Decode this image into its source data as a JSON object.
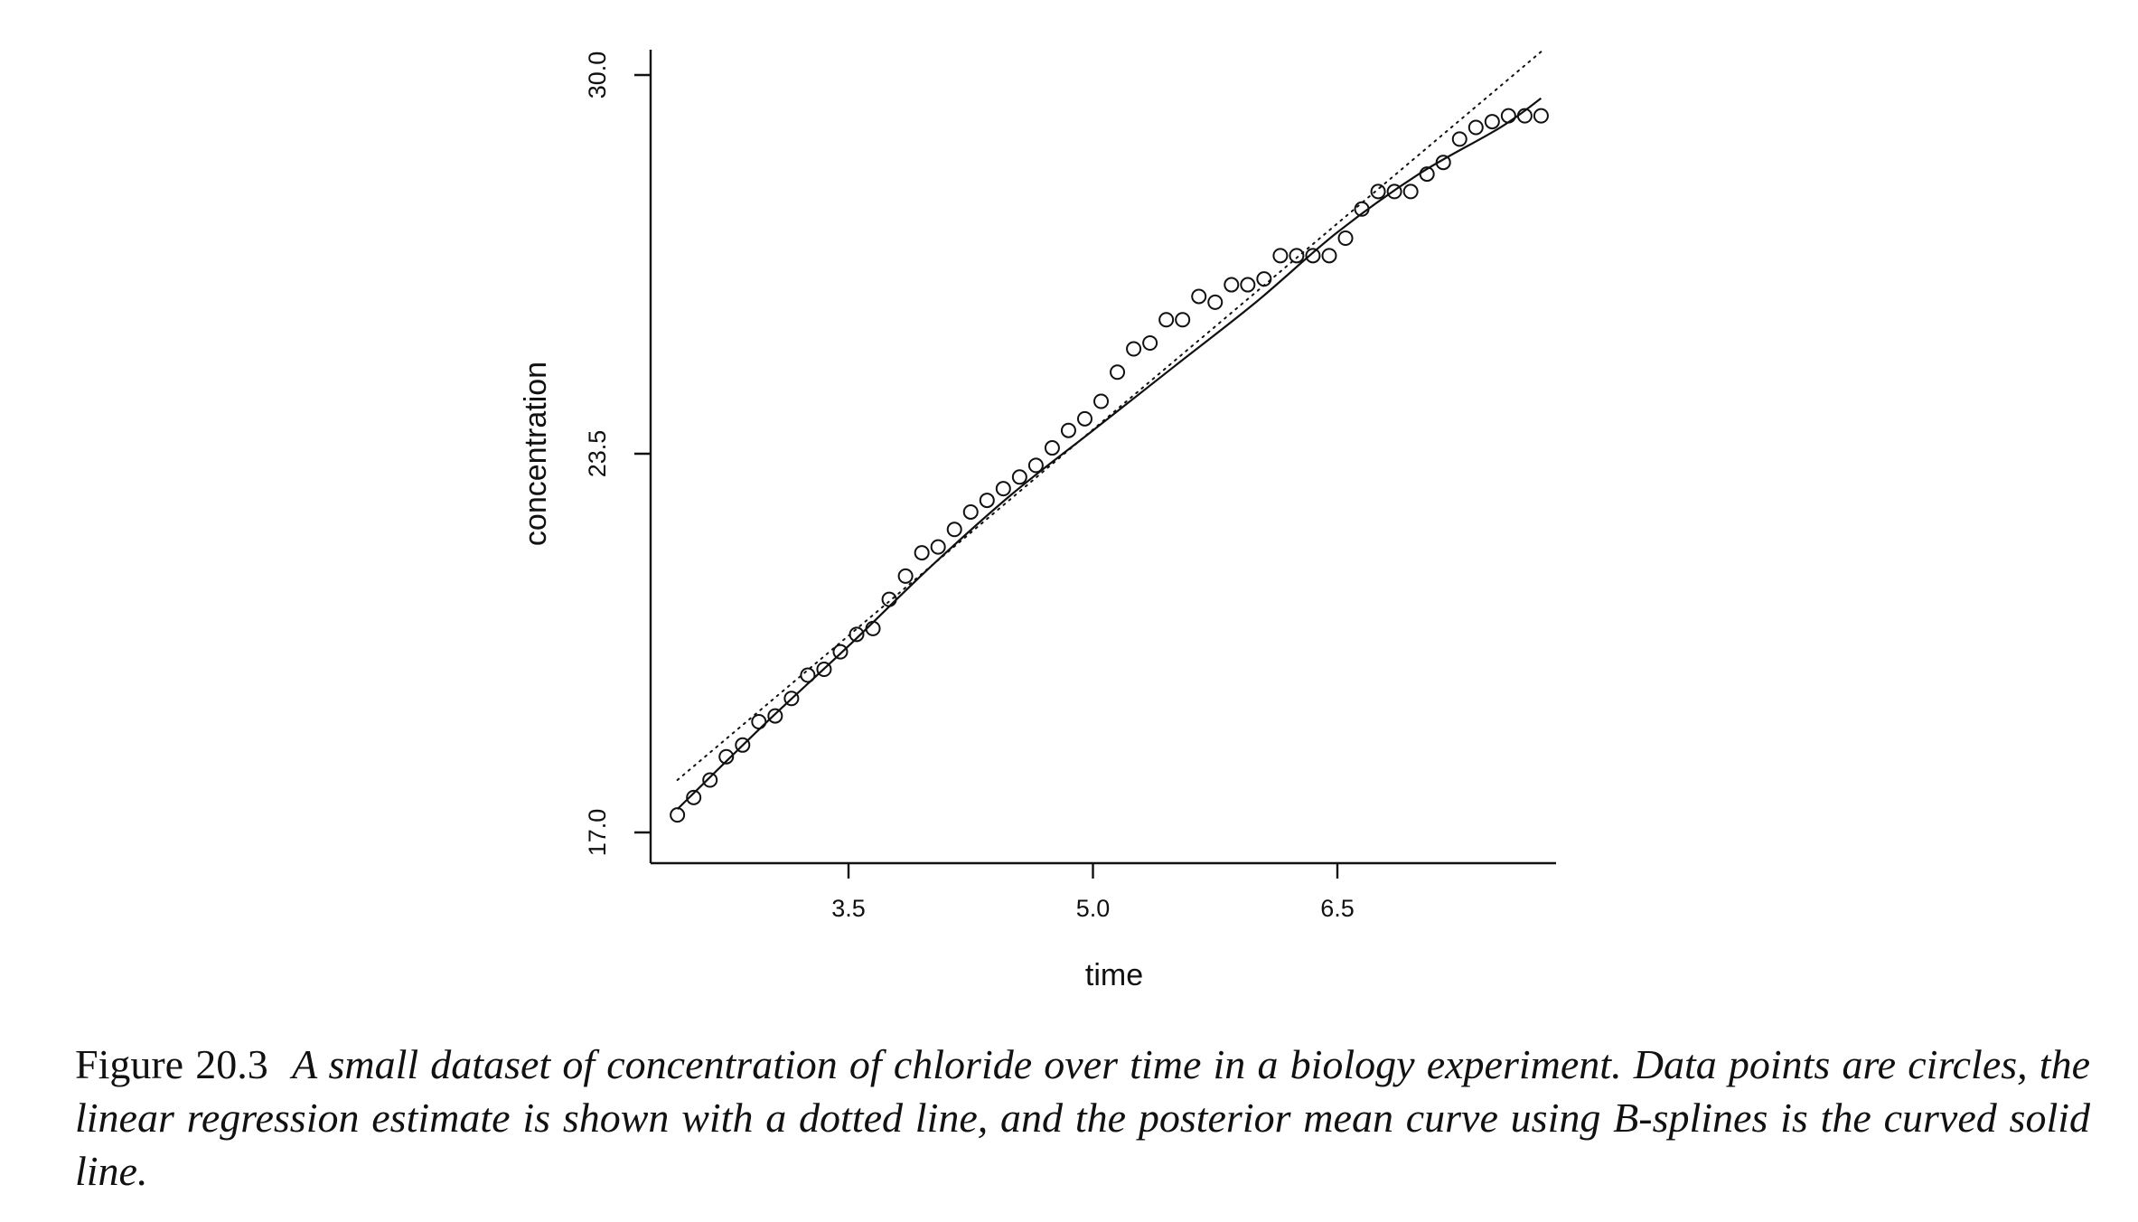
{
  "figure": {
    "label": "Figure 20.3",
    "caption": "A small dataset of concentration of chloride over time in a biology experiment. Data points are circles, the linear regression estimate is shown with a dotted line, and the posterior mean curve using B-splines is the curved solid line."
  },
  "chart_data": {
    "type": "scatter",
    "title": "",
    "xlabel": "time",
    "ylabel": "concentration",
    "xlim": [
      2.25,
      7.9
    ],
    "ylim": [
      16.5,
      30.5
    ],
    "x_ticks": [
      3.5,
      5.0,
      6.5
    ],
    "x_tick_labels": [
      "3.5",
      "5.0",
      "6.5"
    ],
    "y_ticks": [
      17.0,
      23.5,
      30.0
    ],
    "y_tick_labels": [
      "17.0",
      "23.5",
      "30.0"
    ],
    "grid": false,
    "axes_style": "left-and-bottom only",
    "series": [
      {
        "type": "scatter",
        "marker": "open-circle",
        "color": "#111111",
        "points": [
          [
            2.45,
            17.3
          ],
          [
            2.55,
            17.6
          ],
          [
            2.65,
            17.9
          ],
          [
            2.75,
            18.3
          ],
          [
            2.85,
            18.5
          ],
          [
            2.95,
            18.9
          ],
          [
            3.05,
            19.0
          ],
          [
            3.15,
            19.3
          ],
          [
            3.25,
            19.7
          ],
          [
            3.35,
            19.8
          ],
          [
            3.45,
            20.1
          ],
          [
            3.55,
            20.4
          ],
          [
            3.65,
            20.5
          ],
          [
            3.75,
            21.0
          ],
          [
            3.85,
            21.4
          ],
          [
            3.95,
            21.8
          ],
          [
            4.05,
            21.9
          ],
          [
            4.15,
            22.2
          ],
          [
            4.25,
            22.5
          ],
          [
            4.35,
            22.7
          ],
          [
            4.45,
            22.9
          ],
          [
            4.55,
            23.1
          ],
          [
            4.65,
            23.3
          ],
          [
            4.75,
            23.6
          ],
          [
            4.85,
            23.9
          ],
          [
            4.95,
            24.1
          ],
          [
            5.05,
            24.4
          ],
          [
            5.15,
            24.9
          ],
          [
            5.25,
            25.3
          ],
          [
            5.35,
            25.4
          ],
          [
            5.45,
            25.8
          ],
          [
            5.55,
            25.8
          ],
          [
            5.65,
            26.2
          ],
          [
            5.75,
            26.1
          ],
          [
            5.85,
            26.4
          ],
          [
            5.95,
            26.4
          ],
          [
            6.05,
            26.5
          ],
          [
            6.15,
            26.9
          ],
          [
            6.25,
            26.9
          ],
          [
            6.35,
            26.9
          ],
          [
            6.45,
            26.9
          ],
          [
            6.55,
            27.2
          ],
          [
            6.65,
            27.7
          ],
          [
            6.75,
            28.0
          ],
          [
            6.85,
            28.0
          ],
          [
            6.95,
            28.0
          ],
          [
            7.05,
            28.3
          ],
          [
            7.15,
            28.5
          ],
          [
            7.25,
            28.9
          ],
          [
            7.35,
            29.1
          ],
          [
            7.45,
            29.2
          ],
          [
            7.55,
            29.3
          ],
          [
            7.65,
            29.3
          ],
          [
            7.75,
            29.3
          ]
        ]
      },
      {
        "type": "line",
        "style": "dotted",
        "color": "#111111",
        "points": [
          [
            2.45,
            17.9
          ],
          [
            7.75,
            30.4
          ]
        ]
      },
      {
        "type": "line",
        "style": "solid",
        "color": "#111111",
        "points": [
          [
            2.45,
            17.4
          ],
          [
            3.0,
            18.9
          ],
          [
            3.5,
            20.2
          ],
          [
            4.0,
            21.55
          ],
          [
            4.5,
            22.8
          ],
          [
            5.0,
            23.9
          ],
          [
            5.5,
            25.0
          ],
          [
            6.0,
            26.1
          ],
          [
            6.5,
            27.3
          ],
          [
            7.0,
            28.3
          ],
          [
            7.5,
            29.1
          ],
          [
            7.75,
            29.6
          ]
        ]
      }
    ]
  }
}
